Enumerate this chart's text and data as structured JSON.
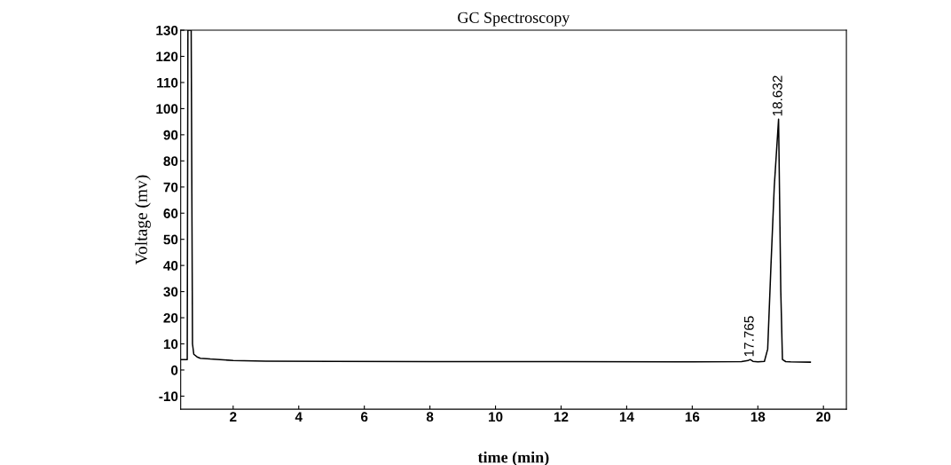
{
  "chart_data": {
    "type": "line",
    "title": "GC Spectroscopy",
    "xlabel": "time (min)",
    "ylabel": "Voltage (mv)",
    "xlim": [
      0.4,
      20.7
    ],
    "ylim": [
      -15,
      130
    ],
    "xticks": [
      2,
      4,
      6,
      8,
      10,
      12,
      14,
      16,
      18,
      20
    ],
    "yticks": [
      -10,
      0,
      10,
      20,
      30,
      40,
      50,
      60,
      70,
      80,
      90,
      100,
      110,
      120,
      130
    ],
    "grid": false,
    "marker": "none",
    "line_style": "solid",
    "series": [
      {
        "color": "#000000",
        "x": [
          0.42,
          0.6,
          0.62,
          0.66,
          0.72,
          0.76,
          0.8,
          0.9,
          1.0,
          1.3,
          1.6,
          2.0,
          3.0,
          5.0,
          8.0,
          12.0,
          16.0,
          17.5,
          17.7,
          17.765,
          17.85,
          18.0,
          18.2,
          18.3,
          18.4,
          18.5,
          18.632,
          18.7,
          18.75,
          18.85,
          19.0,
          19.6
        ],
        "values": [
          4,
          4,
          130,
          130,
          130,
          10,
          6,
          5,
          4.5,
          4.2,
          4,
          3.6,
          3.4,
          3.3,
          3.2,
          3.2,
          3.1,
          3.2,
          3.6,
          4,
          3.3,
          3.1,
          3.3,
          8,
          40,
          70,
          96,
          30,
          4,
          3.2,
          3.1,
          3.0
        ]
      }
    ],
    "annotations": [
      {
        "text": "17.765",
        "x": 17.765,
        "y": 4
      },
      {
        "text": "18.632",
        "x": 18.632,
        "y": 96
      }
    ]
  }
}
